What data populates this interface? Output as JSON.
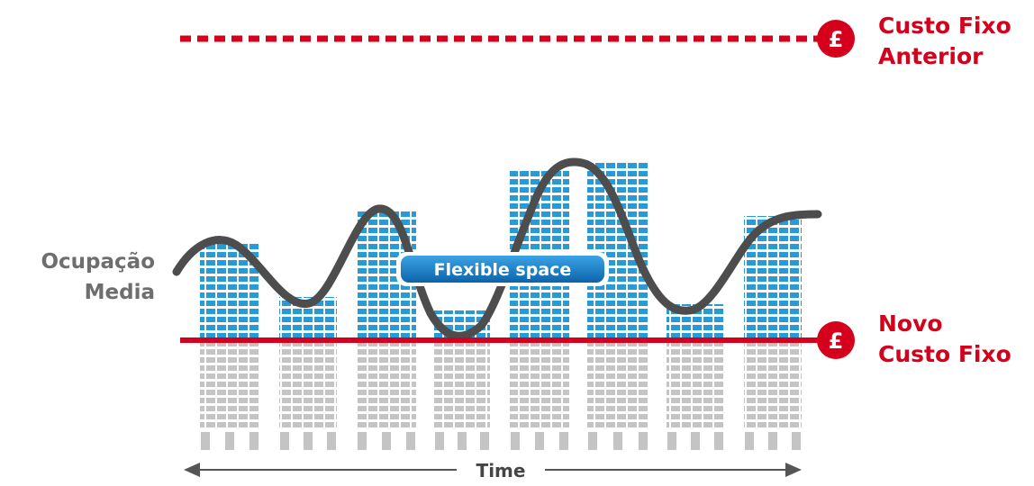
{
  "labels": {
    "previous_fixed_cost": [
      "Custo Fixo",
      "Anterior"
    ],
    "new_fixed_cost": [
      "Novo",
      "Custo Fixo"
    ],
    "average_occupancy": [
      "Ocupação",
      "Media"
    ],
    "flexible_space": "Flexible space",
    "time": "Time"
  },
  "icons": {
    "currency_marker": "pound-sign-icon",
    "currency_symbol": "£"
  },
  "colors": {
    "accent_red": "#d5001c",
    "occupied_blue": "#2a9ad6",
    "unoccupied_gray": "#c4c4c4",
    "curve_gray": "#4d4d4d",
    "pill_blue": "#1c7fc4"
  }
}
